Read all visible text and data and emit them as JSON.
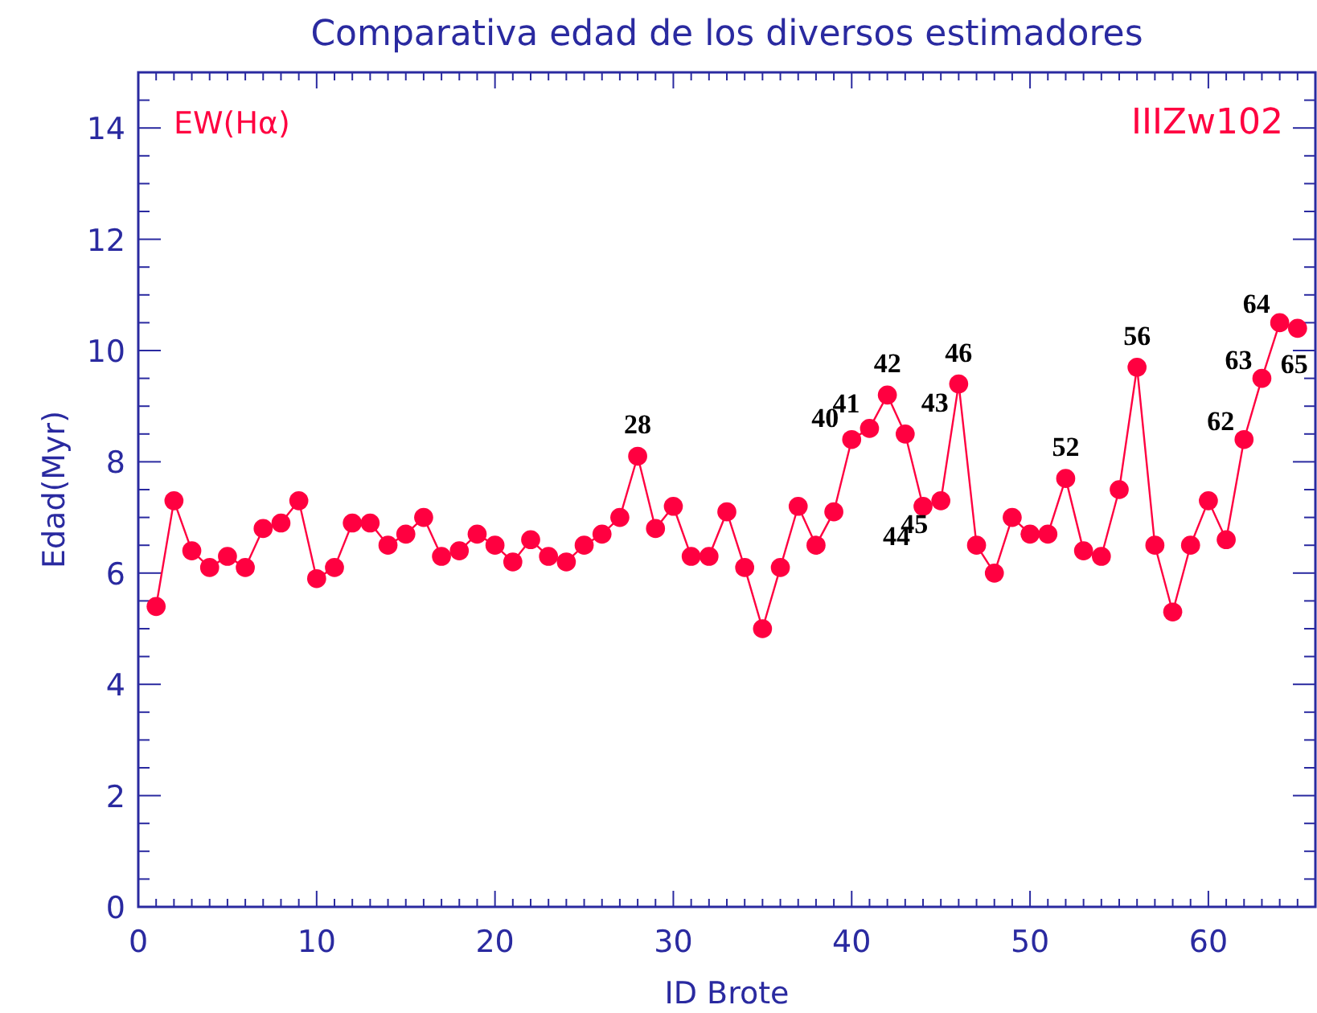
{
  "chart_data": {
    "type": "line",
    "title": "Comparativa edad de los diversos estimadores",
    "xlabel": "ID Brote",
    "ylabel": "Edad(Myr)",
    "marker": "circle",
    "line_style": "solid",
    "x": [
      1,
      2,
      3,
      4,
      5,
      6,
      7,
      8,
      9,
      10,
      11,
      12,
      13,
      14,
      15,
      16,
      17,
      18,
      19,
      20,
      21,
      22,
      23,
      24,
      25,
      26,
      27,
      28,
      29,
      30,
      31,
      32,
      33,
      34,
      35,
      36,
      37,
      38,
      39,
      40,
      41,
      42,
      43,
      44,
      45,
      46,
      47,
      48,
      49,
      50,
      51,
      52,
      53,
      54,
      55,
      56,
      57,
      58,
      59,
      60,
      61,
      62,
      63,
      64,
      65
    ],
    "series": [
      {
        "name": "EW(Hα)",
        "color": "#ff0040",
        "values": [
          5.4,
          7.3,
          6.4,
          6.1,
          6.3,
          6.1,
          6.8,
          6.9,
          7.3,
          5.9,
          6.1,
          6.9,
          6.9,
          6.5,
          6.7,
          7.0,
          6.3,
          6.4,
          6.7,
          6.5,
          6.2,
          6.6,
          6.3,
          6.2,
          6.5,
          6.7,
          7.0,
          8.1,
          6.8,
          7.2,
          6.3,
          6.3,
          7.1,
          6.1,
          5.0,
          6.1,
          7.2,
          6.5,
          7.1,
          8.4,
          8.6,
          9.2,
          8.5,
          7.2,
          7.3,
          9.4,
          6.5,
          6.0,
          7.0,
          6.7,
          6.7,
          7.7,
          6.4,
          6.3,
          7.5,
          9.7,
          6.5,
          5.3,
          6.5,
          7.3,
          6.6,
          8.4,
          9.5,
          10.5,
          10.4
        ]
      }
    ],
    "xlim": [
      0,
      66
    ],
    "ylim": [
      0,
      15
    ],
    "xticks": [
      0,
      {
        "value": 1,
        "label": null
      },
      {
        "value": 2,
        "label": null
      },
      {
        "value": 3,
        "label": null
      },
      {
        "value": 4,
        "label": null
      },
      {
        "value": 5,
        "label": null
      },
      {
        "value": 6,
        "label": null
      },
      {
        "value": 7,
        "label": null
      },
      {
        "value": 8,
        "label": null
      },
      {
        "value": 9,
        "label": null
      },
      10,
      {
        "value": 11,
        "label": null
      },
      {
        "value": 12,
        "label": null
      },
      {
        "value": 13,
        "label": null
      },
      {
        "value": 14,
        "label": null
      },
      {
        "value": 15,
        "label": null
      },
      {
        "value": 16,
        "label": null
      },
      {
        "value": 17,
        "label": null
      },
      {
        "value": 18,
        "label": null
      },
      {
        "value": 19,
        "label": null
      },
      20,
      {
        "value": 21,
        "label": null
      },
      {
        "value": 22,
        "label": null
      },
      {
        "value": 23,
        "label": null
      },
      {
        "value": 24,
        "label": null
      },
      {
        "value": 25,
        "label": null
      },
      {
        "value": 26,
        "label": null
      },
      {
        "value": 27,
        "label": null
      },
      {
        "value": 28,
        "label": null
      },
      {
        "value": 29,
        "label": null
      },
      30,
      {
        "value": 31,
        "label": null
      },
      {
        "value": 32,
        "label": null
      },
      {
        "value": 33,
        "label": null
      },
      {
        "value": 34,
        "label": null
      },
      {
        "value": 35,
        "label": null
      },
      {
        "value": 36,
        "label": null
      },
      {
        "value": 37,
        "label": null
      },
      {
        "value": 38,
        "label": null
      },
      {
        "value": 39,
        "label": null
      },
      40,
      {
        "value": 41,
        "label": null
      },
      {
        "value": 42,
        "label": null
      },
      {
        "value": 43,
        "label": null
      },
      {
        "value": 44,
        "label": null
      },
      {
        "value": 45,
        "label": null
      },
      {
        "value": 46,
        "label": null
      },
      {
        "value": 47,
        "label": null
      },
      {
        "value": 48,
        "label": null
      },
      {
        "value": 49,
        "label": null
      },
      50,
      {
        "value": 51,
        "label": null
      },
      {
        "value": 52,
        "label": null
      },
      {
        "value": 53,
        "label": null
      },
      {
        "value": 54,
        "label": null
      },
      {
        "value": 55,
        "label": null
      },
      {
        "value": 56,
        "label": null
      },
      {
        "value": 57,
        "label": null
      },
      {
        "value": 58,
        "label": null
      },
      {
        "value": 59,
        "label": null
      },
      60,
      {
        "value": 61,
        "label": null
      },
      {
        "value": 62,
        "label": null
      },
      {
        "value": 63,
        "label": null
      },
      {
        "value": 64,
        "label": null
      },
      {
        "value": 65,
        "label": null
      }
    ],
    "yticks": [
      0,
      {
        "value": 0.5,
        "label": null
      },
      {
        "value": 1,
        "label": null
      },
      {
        "value": 1.5,
        "label": null
      },
      2,
      {
        "value": 2.5,
        "label": null
      },
      {
        "value": 3,
        "label": null
      },
      {
        "value": 3.5,
        "label": null
      },
      4,
      {
        "value": 4.5,
        "label": null
      },
      {
        "value": 5,
        "label": null
      },
      {
        "value": 5.5,
        "label": null
      },
      6,
      {
        "value": 6.5,
        "label": null
      },
      {
        "value": 7,
        "label": null
      },
      {
        "value": 7.5,
        "label": null
      },
      8,
      {
        "value": 8.5,
        "label": null
      },
      {
        "value": 9,
        "label": null
      },
      {
        "value": 9.5,
        "label": null
      },
      10,
      {
        "value": 10.5,
        "label": null
      },
      {
        "value": 11,
        "label": null
      },
      {
        "value": 11.5,
        "label": null
      },
      12,
      {
        "value": 12.5,
        "label": null
      },
      {
        "value": 13,
        "label": null
      },
      {
        "value": 13.5,
        "label": null
      },
      14,
      {
        "value": 14.5,
        "label": null
      }
    ],
    "grid": false,
    "legend": "top left",
    "annotations": [
      "IIIZw102",
      {
        "text": "28",
        "x": 28,
        "y": 8.1
      },
      {
        "text": "40",
        "x": 40,
        "y": 8.4
      },
      {
        "text": "41",
        "x": 41,
        "y": 8.6
      },
      {
        "text": "42",
        "x": 42,
        "y": 9.2
      },
      {
        "text": "43",
        "x": 43,
        "y": 8.5
      },
      {
        "text": "44",
        "x": 44,
        "y": 7.2
      },
      {
        "text": "45",
        "x": 45,
        "y": 7.3
      },
      {
        "text": "46",
        "x": 46,
        "y": 9.4
      },
      {
        "text": "52",
        "x": 52,
        "y": 7.7
      },
      {
        "text": "56",
        "x": 56,
        "y": 9.7
      },
      {
        "text": "62",
        "x": 62,
        "y": 8.4
      },
      {
        "text": "63",
        "x": 63,
        "y": 9.5
      },
      {
        "text": "64",
        "x": 64,
        "y": 10.5
      },
      {
        "text": "65",
        "x": 65,
        "y": 10.4
      }
    ]
  }
}
